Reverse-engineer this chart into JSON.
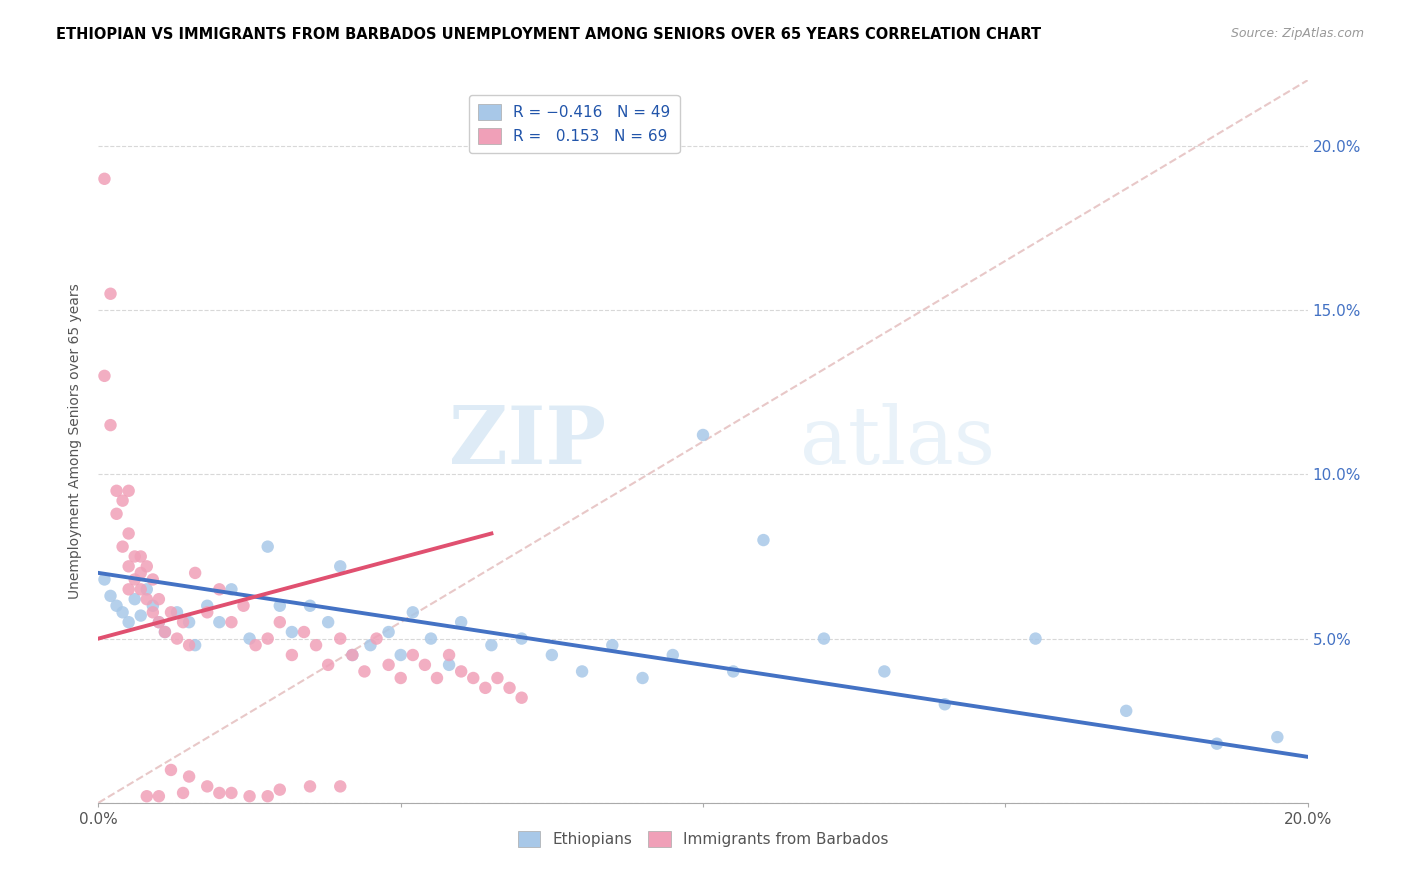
{
  "title": "ETHIOPIAN VS IMMIGRANTS FROM BARBADOS UNEMPLOYMENT AMONG SENIORS OVER 65 YEARS CORRELATION CHART",
  "source": "Source: ZipAtlas.com",
  "ylabel": "Unemployment Among Seniors over 65 years",
  "xlim": [
    0.0,
    0.2
  ],
  "ylim": [
    0.0,
    0.22
  ],
  "yticks": [
    0.0,
    0.05,
    0.1,
    0.15,
    0.2
  ],
  "right_ytick_labels": [
    "",
    "5.0%",
    "10.0%",
    "15.0%",
    "20.0%"
  ],
  "xticks": [
    0.0,
    0.05,
    0.1,
    0.15,
    0.2
  ],
  "xtick_labels": [
    "0.0%",
    "",
    "",
    "",
    "20.0%"
  ],
  "watermark_zip": "ZIP",
  "watermark_atlas": "atlas",
  "ethiopian_color": "#a8c8e8",
  "barbados_color": "#f0a0b8",
  "trend_ethiopian_color": "#4472c4",
  "trend_barbados_color": "#e05070",
  "diagonal_color": "#e8c8c8",
  "trend_eth_x0": 0.0,
  "trend_eth_y0": 0.07,
  "trend_eth_x1": 0.2,
  "trend_eth_y1": 0.014,
  "trend_bar_x0": 0.0,
  "trend_bar_y0": 0.05,
  "trend_bar_x1": 0.065,
  "trend_bar_y1": 0.082,
  "ethiopians_x": [
    0.001,
    0.002,
    0.003,
    0.004,
    0.005,
    0.006,
    0.007,
    0.008,
    0.009,
    0.01,
    0.011,
    0.013,
    0.015,
    0.016,
    0.018,
    0.02,
    0.022,
    0.025,
    0.028,
    0.03,
    0.032,
    0.035,
    0.038,
    0.04,
    0.042,
    0.045,
    0.048,
    0.05,
    0.052,
    0.055,
    0.058,
    0.06,
    0.065,
    0.07,
    0.075,
    0.08,
    0.085,
    0.09,
    0.095,
    0.1,
    0.105,
    0.11,
    0.12,
    0.13,
    0.14,
    0.155,
    0.17,
    0.185,
    0.195
  ],
  "ethiopians_y": [
    0.068,
    0.063,
    0.06,
    0.058,
    0.055,
    0.062,
    0.057,
    0.065,
    0.06,
    0.055,
    0.052,
    0.058,
    0.055,
    0.048,
    0.06,
    0.055,
    0.065,
    0.05,
    0.078,
    0.06,
    0.052,
    0.06,
    0.055,
    0.072,
    0.045,
    0.048,
    0.052,
    0.045,
    0.058,
    0.05,
    0.042,
    0.055,
    0.048,
    0.05,
    0.045,
    0.04,
    0.048,
    0.038,
    0.045,
    0.112,
    0.04,
    0.08,
    0.05,
    0.04,
    0.03,
    0.05,
    0.028,
    0.018,
    0.02
  ],
  "barbados_x": [
    0.001,
    0.001,
    0.002,
    0.002,
    0.003,
    0.003,
    0.004,
    0.004,
    0.005,
    0.005,
    0.005,
    0.006,
    0.006,
    0.007,
    0.007,
    0.008,
    0.008,
    0.009,
    0.009,
    0.01,
    0.01,
    0.011,
    0.012,
    0.013,
    0.014,
    0.015,
    0.016,
    0.018,
    0.02,
    0.022,
    0.024,
    0.026,
    0.028,
    0.03,
    0.032,
    0.034,
    0.036,
    0.038,
    0.04,
    0.042,
    0.044,
    0.046,
    0.048,
    0.05,
    0.052,
    0.054,
    0.056,
    0.058,
    0.06,
    0.062,
    0.064,
    0.066,
    0.068,
    0.07,
    0.012,
    0.015,
    0.018,
    0.022,
    0.025,
    0.028,
    0.008,
    0.01,
    0.014,
    0.02,
    0.03,
    0.035,
    0.04,
    0.005,
    0.007
  ],
  "barbados_y": [
    0.19,
    0.13,
    0.155,
    0.115,
    0.095,
    0.088,
    0.092,
    0.078,
    0.082,
    0.072,
    0.065,
    0.075,
    0.068,
    0.065,
    0.07,
    0.062,
    0.072,
    0.058,
    0.068,
    0.055,
    0.062,
    0.052,
    0.058,
    0.05,
    0.055,
    0.048,
    0.07,
    0.058,
    0.065,
    0.055,
    0.06,
    0.048,
    0.05,
    0.055,
    0.045,
    0.052,
    0.048,
    0.042,
    0.05,
    0.045,
    0.04,
    0.05,
    0.042,
    0.038,
    0.045,
    0.042,
    0.038,
    0.045,
    0.04,
    0.038,
    0.035,
    0.038,
    0.035,
    0.032,
    0.01,
    0.008,
    0.005,
    0.003,
    0.002,
    0.002,
    0.002,
    0.002,
    0.003,
    0.003,
    0.004,
    0.005,
    0.005,
    0.095,
    0.075
  ]
}
